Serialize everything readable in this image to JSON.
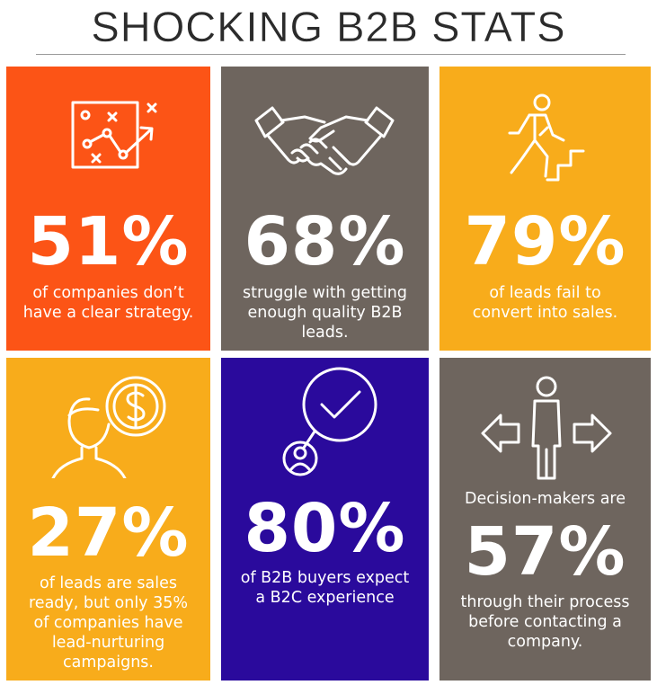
{
  "title": "SHOCKING B2B STATS",
  "colors": {
    "orange": "#fc5416",
    "taupe": "#6e655e",
    "amber": "#f8ac1b",
    "indigo": "#2a0a9c",
    "text": "#ffffff"
  },
  "tiles": [
    {
      "stat": "51%",
      "caption": [
        "of companies don’t",
        "have a clear strategy."
      ],
      "icon": "strategy-chart-icon"
    },
    {
      "stat": "68%",
      "caption": [
        "struggle with getting",
        "enough quality B2B",
        "leads."
      ],
      "icon": "handshake-icon"
    },
    {
      "stat": "79%",
      "caption": [
        "of leads fail to",
        "convert into sales."
      ],
      "icon": "climbing-stairs-icon"
    },
    {
      "stat": "27%",
      "caption": [
        "of leads are sales",
        "ready, but only 35%",
        "of companies have",
        "lead-nurturing",
        "campaigns."
      ],
      "icon": "person-dollar-icon"
    },
    {
      "stat": "80%",
      "caption": [
        "of B2B buyers expect",
        "a B2C experience"
      ],
      "icon": "customer-check-icon"
    },
    {
      "intro": "Decision-makers are",
      "stat": "57%",
      "caption": [
        "through their process",
        "before contacting a",
        "company."
      ],
      "icon": "decision-arrows-icon"
    }
  ]
}
